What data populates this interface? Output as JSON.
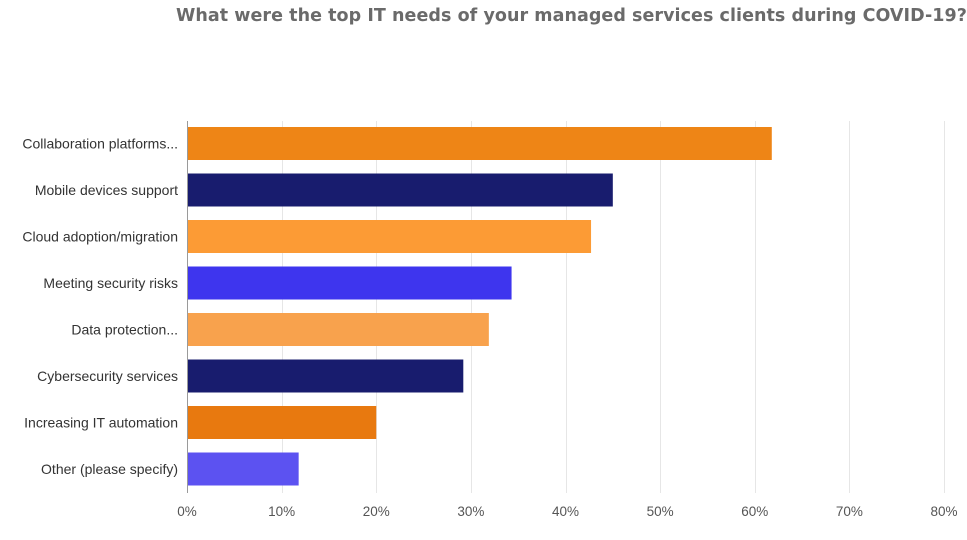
{
  "chart_data": {
    "type": "bar",
    "orientation": "horizontal",
    "title": "What were the top IT needs of your managed services clients during COVID-19?",
    "xlabel": "",
    "ylabel": "",
    "categories": [
      "Collaboration platforms...",
      "Mobile devices support",
      "Cloud adoption/migration",
      "Meeting security risks",
      "Data protection...",
      "Cybersecurity services",
      "Increasing IT automation",
      "Other (please specify)"
    ],
    "values": [
      61.8,
      45,
      42.7,
      34.3,
      31.9,
      29.2,
      20,
      11.8
    ],
    "value_unit": "%",
    "xlim": [
      0,
      80
    ],
    "ticks": [
      0,
      10,
      20,
      30,
      40,
      50,
      60,
      70,
      80
    ],
    "tick_labels": [
      "0%",
      "10%",
      "20%",
      "30%",
      "40%",
      "50%",
      "60%",
      "70%",
      "80%"
    ],
    "colors": [
      "#ee8516",
      "#181c6e",
      "#fc9b35",
      "#3e35ee",
      "#f8a24d",
      "#181c6e",
      "#e8790f",
      "#5c52f1"
    ],
    "grid": true,
    "legend": "none"
  }
}
